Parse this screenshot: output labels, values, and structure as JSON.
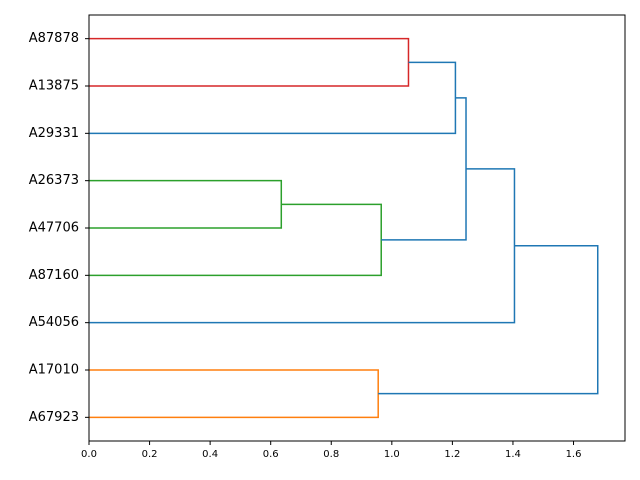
{
  "chart_data": {
    "type": "dendrogram",
    "orientation": "left",
    "x_ticks": [
      "0.0",
      "0.2",
      "0.4",
      "0.6",
      "0.8",
      "1.0",
      "1.2",
      "1.4",
      "1.6"
    ],
    "xlim": [
      0,
      1.77
    ],
    "leaves": [
      "A87878",
      "A13875",
      "A29331",
      "A26373",
      "A47706",
      "A87160",
      "A54056",
      "A17010",
      "A67923"
    ],
    "colors": {
      "red": "#d62728",
      "green": "#2ca02c",
      "orange": "#ff7f0e",
      "blue": "#1f77b4"
    },
    "merges": [
      {
        "id": "m1",
        "left": "A87878",
        "right": "A13875",
        "height": 1.055,
        "color": "red"
      },
      {
        "id": "m2",
        "left": "m1",
        "right": "A29331",
        "height": 1.21,
        "color": "blue"
      },
      {
        "id": "m3",
        "left": "A26373",
        "right": "A47706",
        "height": 0.635,
        "color": "green"
      },
      {
        "id": "m4",
        "left": "m3",
        "right": "A87160",
        "height": 0.965,
        "color": "green"
      },
      {
        "id": "m5",
        "left": "m2",
        "right": "m4",
        "height": 1.245,
        "color": "blue"
      },
      {
        "id": "m6",
        "left": "m5",
        "right": "A54056",
        "height": 1.405,
        "color": "blue"
      },
      {
        "id": "m7",
        "left": "A17010",
        "right": "A67923",
        "height": 0.955,
        "color": "orange"
      },
      {
        "id": "m8",
        "left": "m6",
        "right": "m7",
        "height": 1.68,
        "color": "blue"
      }
    ]
  }
}
